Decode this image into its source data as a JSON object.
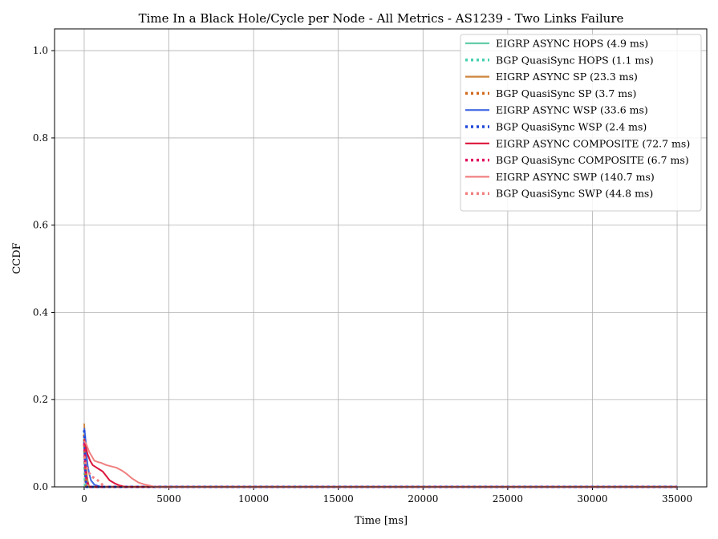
{
  "chart_data": {
    "type": "line",
    "title": "Time In a Black Hole/Cycle per Node - All Metrics - AS1239 - Two Links Failure",
    "xlabel": "Time [ms]",
    "ylabel": "CCDF",
    "xlim": [
      -1750,
      36750
    ],
    "ylim": [
      0,
      1.05
    ],
    "xticks": [
      0,
      5000,
      10000,
      15000,
      20000,
      25000,
      30000,
      35000
    ],
    "xtick_labels": [
      "0",
      "5000",
      "10000",
      "15000",
      "20000",
      "25000",
      "30000",
      "35000"
    ],
    "yticks": [
      0,
      0.2,
      0.4,
      0.6,
      0.8,
      1.0
    ],
    "ytick_labels": [
      "0.0",
      "0.2",
      "0.4",
      "0.6",
      "0.8",
      "1.0"
    ],
    "grid": true,
    "legend_position": "top-right",
    "series": [
      {
        "name": "EIGRP ASYNC HOPS (4.9 ms)",
        "color": "#66cdaa",
        "style": "solid",
        "x": [
          0,
          20,
          40,
          60,
          80,
          100,
          150,
          35000
        ],
        "y": [
          0.13,
          0.11,
          0.08,
          0.05,
          0.03,
          0.01,
          0.0,
          0.0
        ]
      },
      {
        "name": "BGP QuasiSync HOPS (1.1 ms)",
        "color": "#48d1b0",
        "style": "dotted",
        "x": [
          0,
          10,
          20,
          30,
          40,
          50,
          35000
        ],
        "y": [
          0.11,
          0.08,
          0.05,
          0.03,
          0.01,
          0.0,
          0.0
        ]
      },
      {
        "name": "EIGRP ASYNC SP (23.3 ms)",
        "color": "#cd853f",
        "style": "solid",
        "x": [
          0,
          30,
          60,
          100,
          150,
          200,
          300,
          35000
        ],
        "y": [
          0.145,
          0.12,
          0.09,
          0.06,
          0.03,
          0.015,
          0.0,
          0.0
        ]
      },
      {
        "name": "BGP QuasiSync SP (3.7 ms)",
        "color": "#d2691e",
        "style": "dotted",
        "x": [
          0,
          20,
          40,
          60,
          80,
          120,
          35000
        ],
        "y": [
          0.12,
          0.09,
          0.06,
          0.04,
          0.02,
          0.0,
          0.0
        ]
      },
      {
        "name": "EIGRP ASYNC WSP (33.6 ms)",
        "color": "#4169e1",
        "style": "solid",
        "x": [
          0,
          50,
          100,
          150,
          200,
          300,
          400,
          600,
          1000,
          35000
        ],
        "y": [
          0.135,
          0.12,
          0.1,
          0.07,
          0.05,
          0.03,
          0.015,
          0.005,
          0.0,
          0.0
        ]
      },
      {
        "name": "BGP QuasiSync WSP (2.4 ms)",
        "color": "#1e48d8",
        "style": "dotted",
        "x": [
          0,
          20,
          40,
          60,
          90,
          130,
          35000
        ],
        "y": [
          0.13,
          0.1,
          0.07,
          0.04,
          0.02,
          0.0,
          0.0
        ]
      },
      {
        "name": "EIGRP ASYNC COMPOSITE (72.7 ms)",
        "color": "#dc143c",
        "style": "solid",
        "x": [
          0,
          100,
          200,
          350,
          500,
          700,
          900,
          1100,
          1300,
          1500,
          1800,
          2100,
          2500,
          35000
        ],
        "y": [
          0.11,
          0.09,
          0.075,
          0.06,
          0.05,
          0.045,
          0.04,
          0.035,
          0.025,
          0.015,
          0.008,
          0.003,
          0.0,
          0.0
        ]
      },
      {
        "name": "BGP QuasiSync COMPOSITE (6.7 ms)",
        "color": "#e0115f",
        "style": "dotted",
        "x": [
          0,
          30,
          60,
          100,
          150,
          250,
          35000
        ],
        "y": [
          0.1,
          0.08,
          0.05,
          0.03,
          0.015,
          0.0,
          0.0
        ]
      },
      {
        "name": "EIGRP ASYNC SWP (140.7 ms)",
        "color": "#f08080",
        "style": "solid",
        "x": [
          0,
          100,
          200,
          300,
          450,
          600,
          800,
          1000,
          1300,
          1600,
          1900,
          2200,
          2500,
          2800,
          3200,
          3600,
          4200,
          35000
        ],
        "y": [
          0.105,
          0.1,
          0.09,
          0.08,
          0.07,
          0.06,
          0.057,
          0.055,
          0.05,
          0.047,
          0.044,
          0.038,
          0.03,
          0.02,
          0.01,
          0.005,
          0.0,
          0.0
        ]
      },
      {
        "name": "BGP QuasiSync SWP (44.8 ms)",
        "color": "#f08080",
        "style": "dotted",
        "x": [
          0,
          100,
          250,
          400,
          600,
          800,
          1000,
          1200,
          35000
        ],
        "y": [
          0.07,
          0.05,
          0.035,
          0.025,
          0.02,
          0.015,
          0.008,
          0.0,
          0.0
        ]
      }
    ]
  }
}
